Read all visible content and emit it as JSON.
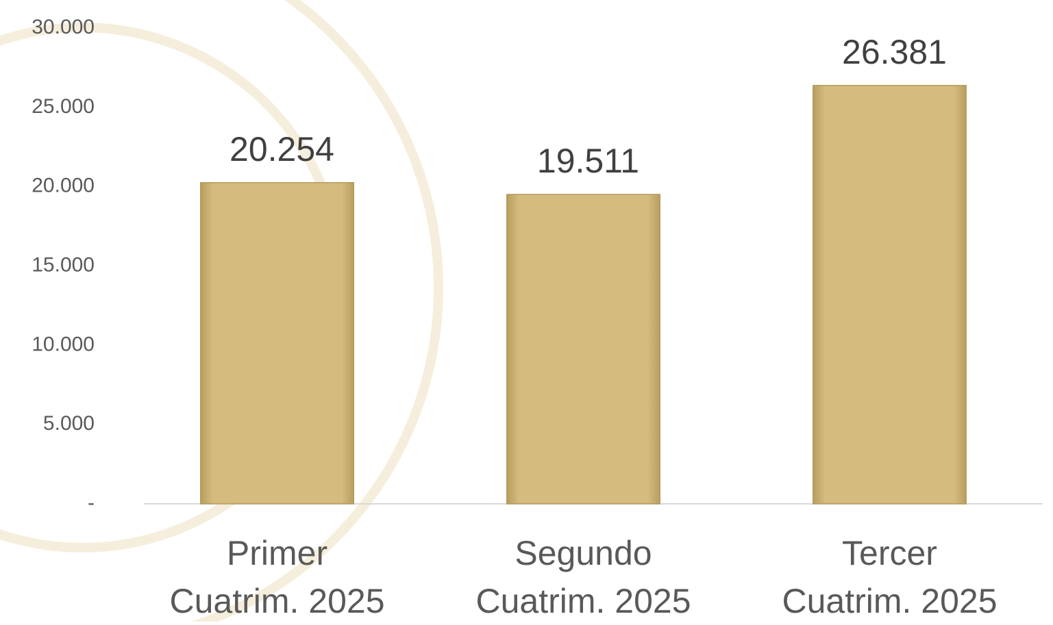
{
  "chart_data": {
    "type": "bar",
    "categories": [
      [
        "Primer",
        "Cuatrim.  2025"
      ],
      [
        "Segundo",
        "Cuatrim. 2025"
      ],
      [
        "Tercer",
        "Cuatrim. 2025"
      ]
    ],
    "values": [
      20254,
      19511,
      26381
    ],
    "value_labels": [
      "20.254",
      "19.511",
      "26.381"
    ],
    "color": "#d5bc7e",
    "ylim": [
      0,
      30000
    ],
    "yticks": [
      {
        "value": 0,
        "label": "-"
      },
      {
        "value": 5000,
        "label": "5.000"
      },
      {
        "value": 10000,
        "label": "10.000"
      },
      {
        "value": 15000,
        "label": "15.000"
      },
      {
        "value": 20000,
        "label": "20.000"
      },
      {
        "value": 25000,
        "label": "25.000"
      },
      {
        "value": 30000,
        "label": "30.000"
      }
    ],
    "grid": false
  }
}
